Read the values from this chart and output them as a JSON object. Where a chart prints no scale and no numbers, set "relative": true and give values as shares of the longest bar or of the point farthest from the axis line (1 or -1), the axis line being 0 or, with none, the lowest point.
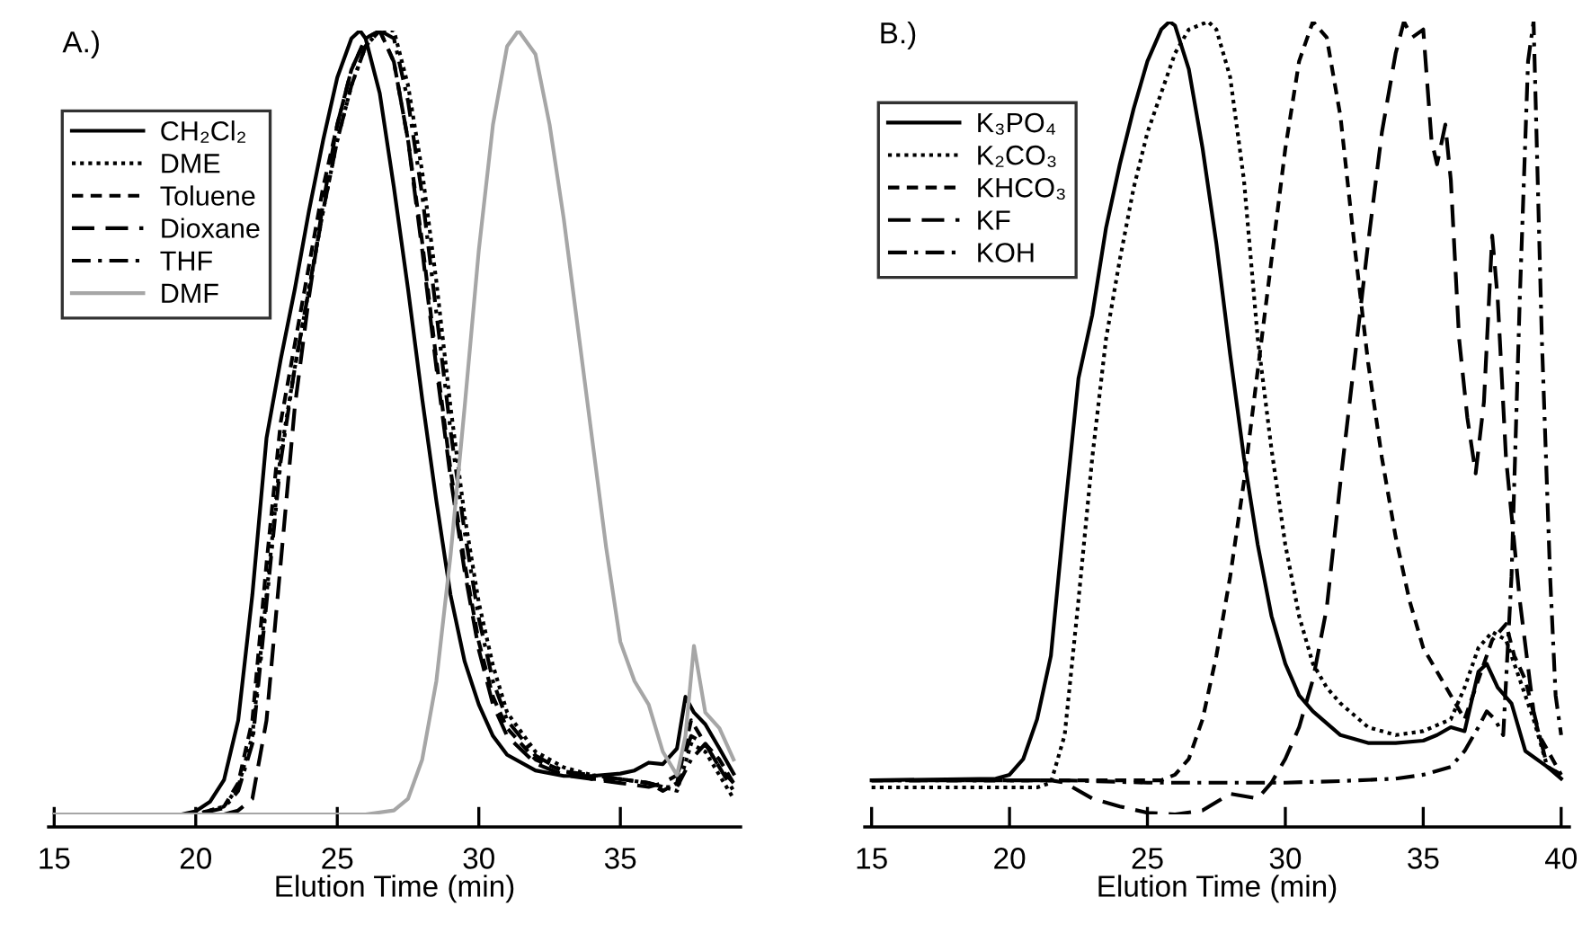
{
  "chart_data": [
    {
      "type": "line",
      "title": "A.)",
      "xlabel": "Elution Time (min)",
      "relative": true,
      "xlim": [
        14.8,
        39.25
      ],
      "xticks": [
        15,
        20,
        25,
        30,
        35
      ],
      "legend": "top left",
      "grid": false,
      "series": [
        {
          "name": "CH₂Cl₂",
          "color": "#000000",
          "line_style": "solid",
          "x": [
            15,
            19.5,
            20,
            20.5,
            21,
            21.5,
            22,
            22.5,
            23,
            23.5,
            24,
            24.5,
            25,
            25.5,
            25.8,
            26,
            26.5,
            27,
            27.5,
            28,
            28.5,
            29,
            29.5,
            30,
            30.5,
            31,
            32,
            33,
            34,
            35,
            35.5,
            36,
            36.5,
            37,
            37.3,
            37.6,
            38,
            38.5,
            39
          ],
          "values": [
            0,
            0,
            0.004,
            0.016,
            0.044,
            0.12,
            0.28,
            0.48,
            0.58,
            0.67,
            0.77,
            0.86,
            0.94,
            0.99,
            1.0,
            0.99,
            0.92,
            0.8,
            0.67,
            0.53,
            0.4,
            0.28,
            0.195,
            0.14,
            0.1,
            0.076,
            0.056,
            0.049,
            0.049,
            0.052,
            0.056,
            0.066,
            0.064,
            0.084,
            0.15,
            0.13,
            0.115,
            0.084,
            0.052
          ]
        },
        {
          "name": "DME",
          "color": "#000000",
          "line_style": "dotted",
          "x": [
            15,
            20,
            21,
            21.5,
            22,
            22.5,
            23,
            23.5,
            24,
            24.5,
            25,
            25.5,
            26,
            26.5,
            27,
            27.5,
            28,
            28.5,
            29,
            29.5,
            30,
            30.5,
            31,
            32,
            33,
            34,
            35,
            36,
            36.5,
            37,
            37.5,
            38,
            38.5,
            39
          ],
          "values": [
            0,
            0,
            0.01,
            0.035,
            0.1,
            0.28,
            0.46,
            0.57,
            0.67,
            0.77,
            0.86,
            0.93,
            0.98,
            1.0,
            1.0,
            0.93,
            0.82,
            0.68,
            0.52,
            0.38,
            0.27,
            0.19,
            0.13,
            0.08,
            0.06,
            0.05,
            0.045,
            0.04,
            0.035,
            0.03,
            0.09,
            0.08,
            0.05,
            0.02
          ]
        },
        {
          "name": "Toluene",
          "color": "#000000",
          "line_style": "dashed",
          "x": [
            15,
            20,
            21,
            21.5,
            22,
            22.5,
            23,
            23.5,
            24,
            24.5,
            25,
            25.5,
            26,
            26.5,
            27,
            27.5,
            28,
            28.5,
            29,
            29.5,
            30,
            30.5,
            31,
            32,
            33,
            34,
            35,
            36,
            36.5,
            37,
            37.5,
            38,
            38.5,
            39
          ],
          "values": [
            0,
            0,
            0.01,
            0.04,
            0.12,
            0.32,
            0.5,
            0.6,
            0.7,
            0.8,
            0.88,
            0.95,
            0.99,
            1.0,
            0.96,
            0.86,
            0.73,
            0.58,
            0.44,
            0.32,
            0.22,
            0.15,
            0.11,
            0.07,
            0.055,
            0.045,
            0.045,
            0.04,
            0.03,
            0.04,
            0.12,
            0.09,
            0.07,
            0.04
          ]
        },
        {
          "name": "Dioxane",
          "color": "#000000",
          "line_style": "longdashed",
          "x": [
            15,
            21,
            21.5,
            22,
            22.5,
            23,
            23.5,
            24,
            24.5,
            25,
            25.5,
            26,
            26.5,
            27,
            27.5,
            28,
            28.5,
            29,
            29.5,
            30,
            30.5,
            31,
            32,
            33,
            34,
            35,
            36,
            36.5,
            37,
            37.5,
            38,
            38.5,
            39
          ],
          "values": [
            0,
            0,
            0.005,
            0.02,
            0.12,
            0.32,
            0.52,
            0.66,
            0.78,
            0.88,
            0.95,
            0.99,
            1.0,
            0.96,
            0.86,
            0.72,
            0.57,
            0.43,
            0.31,
            0.21,
            0.14,
            0.1,
            0.065,
            0.05,
            0.045,
            0.04,
            0.035,
            0.04,
            0.05,
            0.1,
            0.09,
            0.06,
            0.04
          ]
        },
        {
          "name": "THF",
          "color": "#000000",
          "line_style": "dashdot",
          "x": [
            15,
            20,
            21,
            21.5,
            22,
            22.5,
            23,
            23.5,
            24,
            24.5,
            25,
            25.5,
            26,
            26.5,
            27,
            27.5,
            28,
            28.5,
            29,
            29.5,
            30,
            30.5,
            31,
            32,
            33,
            34,
            35,
            36,
            36.5,
            37,
            37.5,
            38,
            38.5,
            39
          ],
          "values": [
            0,
            0,
            0.008,
            0.03,
            0.09,
            0.27,
            0.45,
            0.57,
            0.67,
            0.77,
            0.86,
            0.93,
            0.98,
            1.0,
            0.99,
            0.91,
            0.79,
            0.64,
            0.49,
            0.36,
            0.25,
            0.17,
            0.12,
            0.075,
            0.055,
            0.05,
            0.045,
            0.04,
            0.035,
            0.035,
            0.07,
            0.09,
            0.06,
            0.03
          ]
        },
        {
          "name": "DMF",
          "color": "#a6a6a6",
          "line_style": "solid",
          "x": [
            15,
            26,
            27,
            27.5,
            28,
            28.5,
            29,
            29.5,
            30,
            30.5,
            31,
            31.4,
            32,
            32.5,
            33,
            33.5,
            34,
            34.5,
            35,
            35.5,
            36,
            36.5,
            37,
            37.3,
            37.6,
            38,
            38.5,
            39
          ],
          "values": [
            0,
            0,
            0.005,
            0.02,
            0.07,
            0.17,
            0.33,
            0.52,
            0.72,
            0.88,
            0.98,
            1.0,
            0.97,
            0.88,
            0.76,
            0.62,
            0.48,
            0.34,
            0.22,
            0.17,
            0.14,
            0.08,
            0.05,
            0.1,
            0.215,
            0.13,
            0.11,
            0.07
          ]
        }
      ]
    },
    {
      "type": "line",
      "title": "B.)",
      "xlabel": "Elution Time (min)",
      "relative": true,
      "xlim": [
        14.75,
        40.3
      ],
      "xticks": [
        15,
        20,
        25,
        30,
        35,
        40
      ],
      "legend": "top left",
      "grid": false,
      "series": [
        {
          "name": "K₃PO₄",
          "color": "#000000",
          "line_style": "solid",
          "x": [
            15,
            19.5,
            20,
            20.5,
            21,
            21.5,
            22,
            22.5,
            23,
            23.5,
            24,
            24.5,
            25,
            25.5,
            25.8,
            26,
            26.5,
            27,
            27.5,
            28,
            28.5,
            29,
            29.5,
            30,
            30.5,
            31,
            32,
            33,
            34,
            35,
            35.5,
            36,
            36.5,
            37,
            37.3,
            37.7,
            38.2,
            38.7,
            39.5,
            40
          ],
          "values": [
            0.043,
            0.045,
            0.05,
            0.07,
            0.12,
            0.2,
            0.38,
            0.55,
            0.63,
            0.74,
            0.82,
            0.89,
            0.95,
            0.99,
            1.0,
            0.995,
            0.94,
            0.84,
            0.72,
            0.58,
            0.45,
            0.34,
            0.25,
            0.19,
            0.15,
            0.13,
            0.1,
            0.09,
            0.09,
            0.093,
            0.1,
            0.11,
            0.105,
            0.18,
            0.19,
            0.16,
            0.14,
            0.08,
            0.06,
            0.045
          ]
        },
        {
          "name": "K₂CO₃",
          "color": "#000000",
          "line_style": "dotted",
          "x": [
            15,
            21,
            21.5,
            22,
            22.5,
            23,
            23.5,
            24,
            24.5,
            25,
            25.5,
            26,
            26.5,
            27.2,
            27.5,
            28,
            28.5,
            29,
            29.5,
            30,
            30.5,
            31,
            31.5,
            32,
            33,
            34,
            35,
            36,
            36.5,
            37,
            37.5,
            38,
            38.5,
            39,
            39.5,
            40
          ],
          "values": [
            0.034,
            0.034,
            0.04,
            0.1,
            0.27,
            0.45,
            0.6,
            0.7,
            0.79,
            0.86,
            0.91,
            0.96,
            0.99,
            1.0,
            0.99,
            0.93,
            0.8,
            0.6,
            0.46,
            0.34,
            0.25,
            0.19,
            0.16,
            0.14,
            0.11,
            0.1,
            0.105,
            0.12,
            0.16,
            0.21,
            0.23,
            0.22,
            0.17,
            0.12,
            0.06,
            0.05
          ]
        },
        {
          "name": "KHCO₃",
          "color": "#000000",
          "line_style": "dashed",
          "x": [
            15,
            25.5,
            26,
            26.5,
            27,
            27.5,
            28,
            28.5,
            29,
            29.5,
            30,
            30.5,
            31,
            31.5,
            32,
            32.5,
            33,
            33.5,
            34,
            34.5,
            35,
            35.5,
            36,
            36.5,
            37,
            37.5,
            38,
            38.3,
            38.7,
            39.2,
            40
          ],
          "values": [
            0.043,
            0.043,
            0.05,
            0.07,
            0.12,
            0.2,
            0.3,
            0.42,
            0.56,
            0.7,
            0.84,
            0.95,
            1.0,
            0.98,
            0.88,
            0.72,
            0.57,
            0.45,
            0.35,
            0.27,
            0.21,
            0.18,
            0.15,
            0.12,
            0.17,
            0.22,
            0.24,
            0.2,
            0.17,
            0.1,
            0.05
          ]
        },
        {
          "name": "KF",
          "color": "#000000",
          "line_style": "longdashed",
          "x": [
            15,
            21.5,
            22,
            23,
            24,
            25,
            26,
            27,
            28,
            29,
            29.5,
            30,
            30.5,
            31,
            31.5,
            32,
            32.5,
            33,
            33.5,
            34,
            34.3,
            34.6,
            35,
            35.3,
            35.5,
            35.8,
            36,
            36.3,
            36.6,
            36.9,
            37.2,
            37.5,
            37.7,
            38,
            38.5,
            39,
            39.5,
            40
          ],
          "values": [
            0.043,
            0.043,
            0.04,
            0.02,
            0.01,
            0.002,
            0,
            0.005,
            0.026,
            0.02,
            0.04,
            0.07,
            0.11,
            0.17,
            0.26,
            0.42,
            0.57,
            0.72,
            0.86,
            0.96,
            1.0,
            0.98,
            0.99,
            0.85,
            0.82,
            0.87,
            0.8,
            0.6,
            0.5,
            0.43,
            0.52,
            0.73,
            0.65,
            0.45,
            0.27,
            0.13,
            0.06,
            0.05
          ]
        },
        {
          "name": "KOH",
          "color": "#000000",
          "line_style": "dashdot",
          "x": [
            15,
            22,
            25,
            28,
            30,
            32,
            34,
            35,
            36,
            36.5,
            37,
            37.3,
            37.6,
            37.9,
            38.2,
            38.5,
            38.8,
            39,
            39.3,
            39.6,
            39.8,
            40
          ],
          "values": [
            0.043,
            0.043,
            0.04,
            0.04,
            0.04,
            0.042,
            0.045,
            0.05,
            0.06,
            0.08,
            0.11,
            0.13,
            0.12,
            0.1,
            0.3,
            0.65,
            0.95,
            1.0,
            0.6,
            0.3,
            0.15,
            0.1
          ]
        }
      ]
    }
  ]
}
